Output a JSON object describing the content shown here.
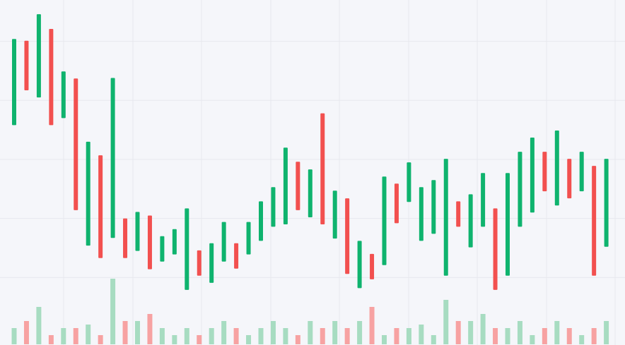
{
  "chart_data": {
    "type": "candlestick",
    "open": [
      35.8,
      50.1,
      40.5,
      52.1,
      37.0,
      43.7,
      15.4,
      30.7,
      16.7,
      20.0,
      14.5,
      20.5,
      12.7,
      13.9,
      7.9,
      14.6,
      9.1,
      12.7,
      15.8,
      13.9,
      16.2,
      18.6,
      19.0,
      29.6,
      20.2,
      37.8,
      16.6,
      23.4,
      8.2,
      14.0,
      12.1,
      25.9,
      22.8,
      16.2,
      17.4,
      10.3,
      22.9,
      15.1,
      18.6,
      21.7,
      10.3,
      18.6,
      21.0,
      31.3,
      22.2,
      30.1,
      24.6,
      28.9,
      15.2
    ],
    "close": [
      50.4,
      41.7,
      54.6,
      35.8,
      44.9,
      21.4,
      33.0,
      13.3,
      43.8,
      13.3,
      21.1,
      11.4,
      17.0,
      18.2,
      21.7,
      10.3,
      15.8,
      19.4,
      11.5,
      19.4,
      22.9,
      25.3,
      32.0,
      21.4,
      28.3,
      19.0,
      24.7,
      10.6,
      16.2,
      9.7,
      27.1,
      19.2,
      29.5,
      25.3,
      26.5,
      30.1,
      18.6,
      24.1,
      27.7,
      7.9,
      27.7,
      31.3,
      33.7,
      24.6,
      34.9,
      23.4,
      31.3,
      10.3,
      30.1
    ],
    "volume": [
      23,
      33,
      53,
      13,
      23,
      23,
      28,
      13,
      93,
      33,
      33,
      43,
      23,
      13,
      23,
      13,
      23,
      33,
      23,
      13,
      23,
      33,
      23,
      13,
      33,
      23,
      33,
      23,
      33,
      53,
      13,
      23,
      23,
      28,
      13,
      63,
      33,
      33,
      43,
      23,
      23,
      33,
      13,
      23,
      33,
      23,
      13,
      23,
      33
    ],
    "ylim": [
      0,
      57
    ],
    "yticks": [
      10,
      20,
      30,
      40,
      50
    ],
    "volume_lim": [
      0,
      100
    ],
    "up_color": "#0fb36e",
    "down_color": "#f2504f",
    "up_volume_color": "#a7dcc1",
    "down_volume_color": "#f7a2a2",
    "grid": true
  }
}
